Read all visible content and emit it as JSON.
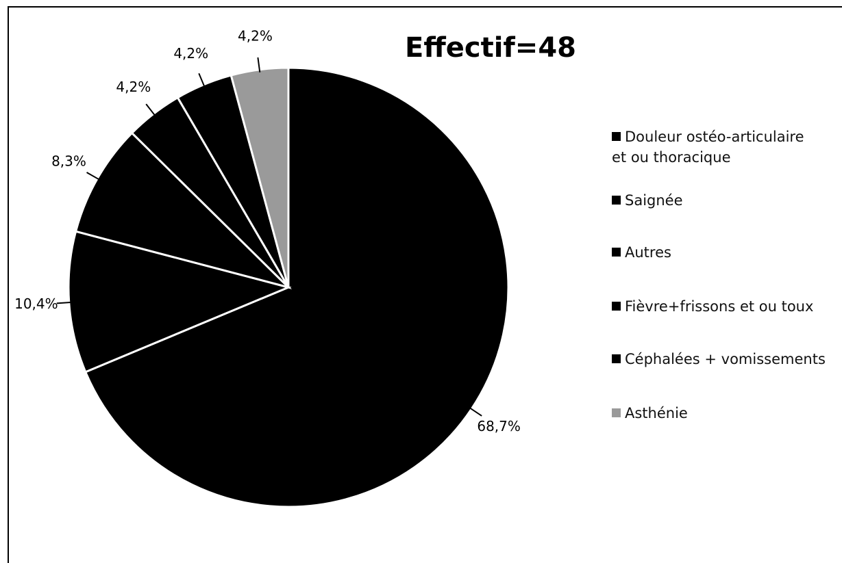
{
  "chart_data": {
    "type": "pie",
    "title": "Effectif=48",
    "categories": [
      "Douleur ostéo-articulaire et ou thoracique",
      "Saignée",
      "Autres",
      "Fièvre+frissons et ou toux",
      "Céphalées + vomissements",
      "Asthénie"
    ],
    "values": [
      68.7,
      10.4,
      8.3,
      4.2,
      4.2,
      4.2
    ],
    "value_labels": [
      "68,7%",
      "10,4%",
      "8,3%",
      "4,2%",
      "4,2%",
      "4,2%"
    ],
    "colors": [
      "#000000",
      "#000000",
      "#000000",
      "#000000",
      "#000000",
      "#9a9a9a"
    ]
  }
}
